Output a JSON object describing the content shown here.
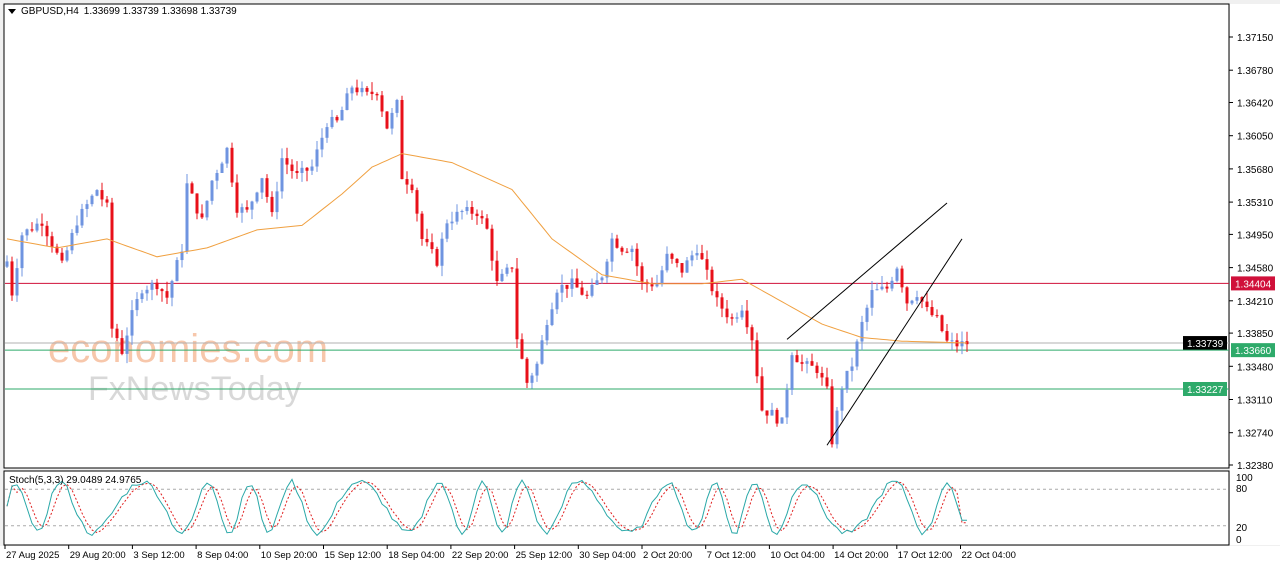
{
  "header": {
    "symbol": "GBPUSD,H4",
    "ohlc": "1.33699 1.33739 1.33698 1.33739"
  },
  "watermark": {
    "logo1": "economies.com",
    "logo2": "FxNewsToday"
  },
  "colors": {
    "bull": "#6f94e0",
    "bear": "#e8101a",
    "ma": "#f0a040",
    "resistance": "#d0103a",
    "support": "#2eaa6a",
    "current": "#b0b0b0",
    "stoch_main": "#2aa8a8",
    "stoch_signal": "#e02020"
  },
  "indicator": {
    "label": "Stoch(5,3,3) 29.0489 24.9765",
    "levels": [
      "100",
      "80",
      "20",
      "0"
    ]
  },
  "chart_data": {
    "type": "candlestick",
    "price_axis": [
      "1.37150",
      "1.36780",
      "1.36420",
      "1.36050",
      "1.35680",
      "1.35310",
      "1.34950",
      "1.34580",
      "1.34210",
      "1.33850",
      "1.33480",
      "1.33110",
      "1.32740",
      "1.32380"
    ],
    "ylim": [
      1.3238,
      1.3715
    ],
    "time_axis": [
      "27 Aug 2025",
      "29 Aug 20:00",
      "3 Sep 12:00",
      "8 Sep 04:00",
      "10 Sep 20:00",
      "15 Sep 12:00",
      "18 Sep 04:00",
      "22 Sep 20:00",
      "25 Sep 12:00",
      "30 Sep 04:00",
      "2 Oct 20:00",
      "7 Oct 12:00",
      "10 Oct 04:00",
      "14 Oct 20:00",
      "17 Oct 12:00",
      "22 Oct 04:00"
    ],
    "close_path": [
      [
        0,
        1.3465
      ],
      [
        1,
        1.343
      ],
      [
        3,
        1.3495
      ],
      [
        7,
        1.351
      ],
      [
        11,
        1.346
      ],
      [
        14,
        1.351
      ],
      [
        18,
        1.3545
      ],
      [
        20,
        1.3525
      ],
      [
        21,
        1.339
      ],
      [
        22,
        1.338
      ],
      [
        23,
        1.3365
      ],
      [
        25,
        1.3405
      ],
      [
        27,
        1.3435
      ],
      [
        30,
        1.344
      ],
      [
        32,
        1.3425
      ],
      [
        35,
        1.348
      ],
      [
        36,
        1.355
      ],
      [
        39,
        1.351
      ],
      [
        41,
        1.3555
      ],
      [
        44,
        1.359
      ],
      [
        46,
        1.3525
      ],
      [
        48,
        1.352
      ],
      [
        51,
        1.356
      ],
      [
        53,
        1.3515
      ],
      [
        55,
        1.358
      ],
      [
        58,
        1.356
      ],
      [
        61,
        1.357
      ],
      [
        64,
        1.362
      ],
      [
        66,
        1.362
      ],
      [
        69,
        1.366
      ],
      [
        72,
        1.365
      ],
      [
        74,
        1.3655
      ],
      [
        76,
        1.3615
      ],
      [
        78,
        1.364
      ],
      [
        79,
        1.356
      ],
      [
        81,
        1.355
      ],
      [
        83,
        1.349
      ],
      [
        86,
        1.3465
      ],
      [
        88,
        1.351
      ],
      [
        91,
        1.352
      ],
      [
        94,
        1.352
      ],
      [
        96,
        1.35
      ],
      [
        98,
        1.344
      ],
      [
        101,
        1.346
      ],
      [
        102,
        1.338
      ],
      [
        104,
        1.333
      ],
      [
        106,
        1.335
      ],
      [
        108,
        1.34
      ],
      [
        110,
        1.3435
      ],
      [
        113,
        1.344
      ],
      [
        116,
        1.3425
      ],
      [
        119,
        1.345
      ],
      [
        121,
        1.349
      ],
      [
        123,
        1.348
      ],
      [
        125,
        1.348
      ],
      [
        127,
        1.344
      ],
      [
        130,
        1.344
      ],
      [
        132,
        1.347
      ],
      [
        135,
        1.3455
      ],
      [
        138,
        1.348
      ],
      [
        140,
        1.345
      ],
      [
        142,
        1.342
      ],
      [
        145,
        1.34
      ],
      [
        147,
        1.3415
      ],
      [
        149,
        1.338
      ],
      [
        151,
        1.33
      ],
      [
        153,
        1.3295
      ],
      [
        155,
        1.3285
      ],
      [
        157,
        1.3365
      ],
      [
        159,
        1.335
      ],
      [
        162,
        1.3345
      ],
      [
        164,
        1.332
      ],
      [
        165,
        1.3265
      ],
      [
        167,
        1.3325
      ],
      [
        169,
        1.335
      ],
      [
        171,
        1.3395
      ],
      [
        173,
        1.343
      ],
      [
        176,
        1.3435
      ],
      [
        178,
        1.346
      ],
      [
        180,
        1.342
      ],
      [
        182,
        1.343
      ],
      [
        184,
        1.341
      ],
      [
        186,
        1.34
      ],
      [
        188,
        1.3375
      ],
      [
        190,
        1.3372
      ],
      [
        192,
        1.33739
      ]
    ],
    "ma_path": [
      [
        0,
        1.349
      ],
      [
        10,
        1.348
      ],
      [
        20,
        1.349
      ],
      [
        30,
        1.347
      ],
      [
        40,
        1.348
      ],
      [
        50,
        1.35
      ],
      [
        59,
        1.3505
      ],
      [
        67,
        1.354
      ],
      [
        73,
        1.357
      ],
      [
        79,
        1.3585
      ],
      [
        89,
        1.3575
      ],
      [
        101,
        1.3545
      ],
      [
        109,
        1.349
      ],
      [
        119,
        1.345
      ],
      [
        129,
        1.344
      ],
      [
        139,
        1.344
      ],
      [
        147,
        1.3445
      ],
      [
        155,
        1.342
      ],
      [
        163,
        1.3395
      ],
      [
        171,
        1.338
      ],
      [
        179,
        1.3376
      ],
      [
        192,
        1.3374
      ]
    ],
    "horizontal_levels": [
      {
        "price": "1.34404",
        "role": "resistance"
      },
      {
        "price": "1.33739",
        "role": "current"
      },
      {
        "price": "1.33660",
        "role": "support"
      },
      {
        "price": "1.33227",
        "role": "support"
      }
    ],
    "trendlines": [
      [
        [
          156,
          1.3378
        ],
        [
          188,
          1.353
        ]
      ],
      [
        [
          164,
          1.326
        ],
        [
          191,
          1.349
        ]
      ]
    ]
  }
}
